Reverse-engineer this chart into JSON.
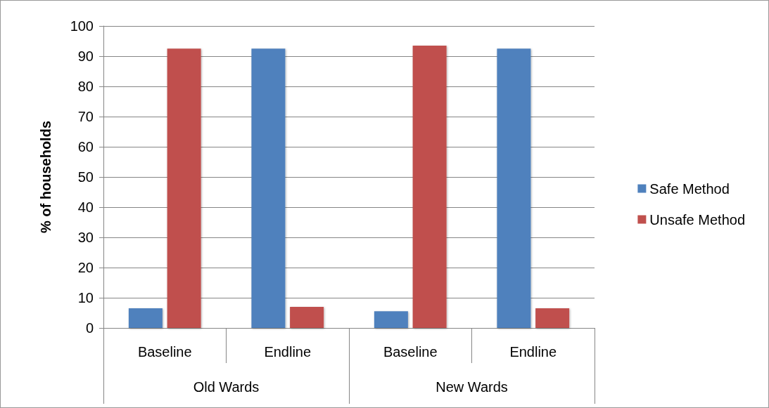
{
  "chart_data": {
    "type": "bar",
    "ylabel": "% of households",
    "categories": [
      "Baseline",
      "Endline",
      "Baseline",
      "Endline"
    ],
    "annotations": [
      "Old Wards",
      "New Wards"
    ],
    "series": [
      {
        "name": "Safe Method",
        "color": "#4f81bd",
        "values": [
          6.5,
          92.5,
          5.5,
          92.5
        ]
      },
      {
        "name": "Unsafe Method",
        "color": "#c0504d",
        "values": [
          92.5,
          7,
          93.5,
          6.5
        ]
      }
    ],
    "ylim": [
      0,
      100
    ],
    "yticks": [
      0,
      10,
      20,
      30,
      40,
      50,
      60,
      70,
      80,
      90,
      100
    ],
    "grid": "y",
    "legend": "right"
  }
}
